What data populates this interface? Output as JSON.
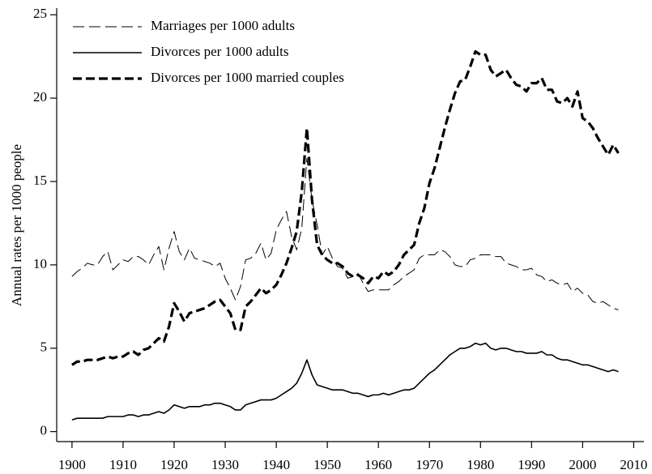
{
  "chart_data": {
    "type": "line",
    "y_label": "Annual rates per 1000 people",
    "x": [
      1900,
      1901,
      1902,
      1903,
      1904,
      1905,
      1906,
      1907,
      1908,
      1909,
      1910,
      1911,
      1912,
      1913,
      1914,
      1915,
      1916,
      1917,
      1918,
      1919,
      1920,
      1921,
      1922,
      1923,
      1924,
      1925,
      1926,
      1927,
      1928,
      1929,
      1930,
      1931,
      1932,
      1933,
      1934,
      1935,
      1936,
      1937,
      1938,
      1939,
      1940,
      1941,
      1942,
      1943,
      1944,
      1945,
      1946,
      1947,
      1948,
      1949,
      1950,
      1951,
      1952,
      1953,
      1954,
      1955,
      1956,
      1957,
      1958,
      1959,
      1960,
      1961,
      1962,
      1963,
      1964,
      1965,
      1966,
      1967,
      1968,
      1969,
      1970,
      1971,
      1972,
      1973,
      1974,
      1975,
      1976,
      1977,
      1978,
      1979,
      1980,
      1981,
      1982,
      1983,
      1984,
      1985,
      1986,
      1987,
      1988,
      1989,
      1990,
      1991,
      1992,
      1993,
      1994,
      1995,
      1996,
      1997,
      1998,
      1999,
      2000,
      2001,
      2002,
      2003,
      2004,
      2005,
      2006,
      2007
    ],
    "series": [
      {
        "name": "Marriages per 1000 adults",
        "color": "#000000",
        "style": "long-dash",
        "values": [
          9.3,
          9.6,
          9.8,
          10.1,
          10.0,
          10.0,
          10.5,
          10.8,
          9.7,
          10.0,
          10.3,
          10.2,
          10.5,
          10.5,
          10.3,
          10.0,
          10.6,
          11.1,
          9.7,
          11.0,
          12.0,
          10.8,
          10.3,
          11.0,
          10.4,
          10.3,
          10.2,
          10.1,
          9.9,
          10.1,
          9.2,
          8.6,
          7.9,
          8.7,
          10.3,
          10.4,
          10.7,
          11.3,
          10.3,
          10.7,
          12.1,
          12.7,
          13.2,
          11.7,
          10.9,
          12.2,
          16.4,
          13.9,
          12.4,
          10.6,
          11.1,
          10.4,
          9.9,
          9.8,
          9.2,
          9.3,
          9.5,
          8.9,
          8.4,
          8.5,
          8.5,
          8.5,
          8.5,
          8.8,
          9.0,
          9.3,
          9.5,
          9.7,
          10.4,
          10.6,
          10.6,
          10.6,
          10.9,
          10.8,
          10.5,
          10.0,
          9.9,
          9.9,
          10.3,
          10.4,
          10.6,
          10.6,
          10.6,
          10.5,
          10.5,
          10.1,
          10.0,
          9.9,
          9.7,
          9.7,
          9.8,
          9.4,
          9.3,
          9.0,
          9.1,
          8.9,
          8.8,
          8.9,
          8.4,
          8.6,
          8.3,
          8.2,
          7.8,
          7.7,
          7.8,
          7.6,
          7.4,
          7.3
        ]
      },
      {
        "name": "Divorces per 1000 adults",
        "color": "#000000",
        "style": "solid",
        "values": [
          0.7,
          0.8,
          0.8,
          0.8,
          0.8,
          0.8,
          0.8,
          0.9,
          0.9,
          0.9,
          0.9,
          1.0,
          1.0,
          0.9,
          1.0,
          1.0,
          1.1,
          1.2,
          1.1,
          1.3,
          1.6,
          1.5,
          1.4,
          1.5,
          1.5,
          1.5,
          1.6,
          1.6,
          1.7,
          1.7,
          1.6,
          1.5,
          1.3,
          1.3,
          1.6,
          1.7,
          1.8,
          1.9,
          1.9,
          1.9,
          2.0,
          2.2,
          2.4,
          2.6,
          2.9,
          3.5,
          4.3,
          3.4,
          2.8,
          2.7,
          2.6,
          2.5,
          2.5,
          2.5,
          2.4,
          2.3,
          2.3,
          2.2,
          2.1,
          2.2,
          2.2,
          2.3,
          2.2,
          2.3,
          2.4,
          2.5,
          2.5,
          2.6,
          2.9,
          3.2,
          3.5,
          3.7,
          4.0,
          4.3,
          4.6,
          4.8,
          5.0,
          5.0,
          5.1,
          5.3,
          5.2,
          5.3,
          5.0,
          4.9,
          5.0,
          5.0,
          4.9,
          4.8,
          4.8,
          4.7,
          4.7,
          4.7,
          4.8,
          4.6,
          4.6,
          4.4,
          4.3,
          4.3,
          4.2,
          4.1,
          4.0,
          4.0,
          3.9,
          3.8,
          3.7,
          3.6,
          3.7,
          3.6
        ]
      },
      {
        "name": "Divorces per 1000 married couples",
        "color": "#000000",
        "style": "thick-dash",
        "values": [
          4.0,
          4.2,
          4.2,
          4.3,
          4.3,
          4.3,
          4.4,
          4.5,
          4.4,
          4.5,
          4.5,
          4.7,
          4.8,
          4.6,
          4.9,
          5.0,
          5.3,
          5.6,
          5.4,
          6.3,
          7.7,
          7.2,
          6.6,
          7.1,
          7.2,
          7.3,
          7.4,
          7.6,
          7.8,
          7.9,
          7.5,
          7.1,
          6.1,
          6.1,
          7.5,
          7.8,
          8.2,
          8.6,
          8.3,
          8.5,
          8.8,
          9.4,
          10.1,
          11.0,
          12.0,
          14.4,
          18.2,
          13.9,
          11.2,
          10.6,
          10.3,
          10.1,
          10.1,
          9.9,
          9.5,
          9.3,
          9.4,
          9.2,
          8.9,
          9.3,
          9.2,
          9.6,
          9.4,
          9.6,
          10.0,
          10.6,
          10.9,
          11.2,
          12.5,
          13.4,
          14.9,
          15.8,
          17.0,
          18.2,
          19.3,
          20.3,
          21.0,
          21.1,
          21.9,
          22.8,
          22.6,
          22.6,
          21.7,
          21.3,
          21.5,
          21.7,
          21.2,
          20.8,
          20.7,
          20.4,
          20.9,
          20.9,
          21.2,
          20.5,
          20.5,
          19.8,
          19.7,
          20.0,
          19.5,
          20.4,
          18.8,
          18.6,
          18.2,
          17.6,
          17.1,
          16.6,
          17.2,
          16.7
        ]
      }
    ],
    "xlim": [
      1897,
      2012
    ],
    "xticks": [
      1900,
      1910,
      1920,
      1930,
      1940,
      1950,
      1960,
      1970,
      1980,
      1990,
      2000,
      2010
    ],
    "ylim": [
      -0.6,
      25.4
    ],
    "yticks": [
      0,
      5,
      10,
      15,
      20,
      25
    ],
    "grid": false,
    "legend": "top-left"
  }
}
